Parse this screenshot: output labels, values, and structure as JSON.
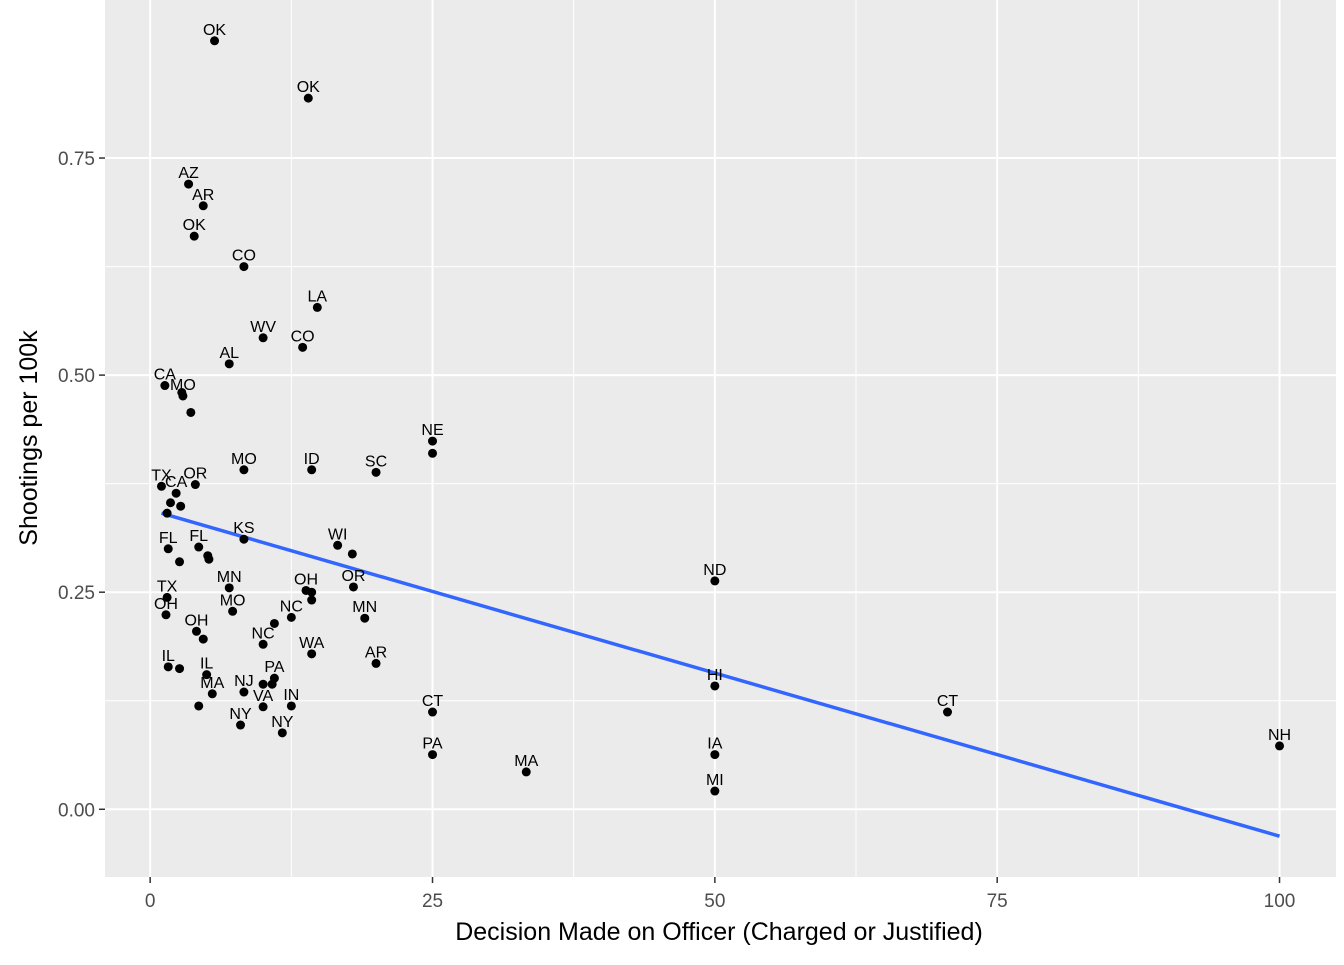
{
  "chart_data": {
    "type": "scatter",
    "title": "",
    "xlabel": "Decision Made on Officer (Charged or Justified)",
    "ylabel": "Shootings per 100k",
    "xlim": [
      -4,
      105
    ],
    "ylim": [
      -0.078,
      0.932
    ],
    "xticks": [
      0,
      25,
      50,
      75,
      100
    ],
    "xtick_labels": [
      "0",
      "25",
      "50",
      "75",
      "100"
    ],
    "yticks": [
      0.0,
      0.25,
      0.5,
      0.75
    ],
    "ytick_labels": [
      "0.00",
      "0.25",
      "0.50",
      "0.75"
    ],
    "grid": true,
    "background": "#ebebeb",
    "grid_color": "#ffffff",
    "point_color": "#000000",
    "trend_color": "#3366ff",
    "trend_line": {
      "x": [
        1,
        100
      ],
      "y": [
        0.341,
        -0.031
      ]
    },
    "points": [
      {
        "x": 5.7,
        "y": 0.885,
        "label": "OK"
      },
      {
        "x": 14,
        "y": 0.819,
        "label": "OK"
      },
      {
        "x": 3.4,
        "y": 0.72,
        "label": "AZ"
      },
      {
        "x": 4.7,
        "y": 0.695,
        "label": "AR"
      },
      {
        "x": 3.9,
        "y": 0.66,
        "label": "OK"
      },
      {
        "x": 8.3,
        "y": 0.625,
        "label": "CO"
      },
      {
        "x": 14.8,
        "y": 0.578,
        "label": "LA"
      },
      {
        "x": 10,
        "y": 0.543,
        "label": "WV"
      },
      {
        "x": 13.5,
        "y": 0.532,
        "label": "CO"
      },
      {
        "x": 7,
        "y": 0.513,
        "label": "AL"
      },
      {
        "x": 1.3,
        "y": 0.488,
        "label": "CA"
      },
      {
        "x": 2.8,
        "y": 0.48,
        "label": ""
      },
      {
        "x": 2.9,
        "y": 0.476,
        "label": "MO"
      },
      {
        "x": 3.6,
        "y": 0.457,
        "label": ""
      },
      {
        "x": 25,
        "y": 0.424,
        "label": "NE"
      },
      {
        "x": 25,
        "y": 0.41,
        "label": ""
      },
      {
        "x": 8.3,
        "y": 0.391,
        "label": "MO"
      },
      {
        "x": 14.3,
        "y": 0.391,
        "label": "ID"
      },
      {
        "x": 20,
        "y": 0.388,
        "label": "SC"
      },
      {
        "x": 1,
        "y": 0.372,
        "label": "TX"
      },
      {
        "x": 4,
        "y": 0.374,
        "label": "OR"
      },
      {
        "x": 2.3,
        "y": 0.364,
        "label": "CA"
      },
      {
        "x": 1.8,
        "y": 0.353,
        "label": ""
      },
      {
        "x": 2.7,
        "y": 0.349,
        "label": ""
      },
      {
        "x": 1.5,
        "y": 0.341,
        "label": ""
      },
      {
        "x": 8.3,
        "y": 0.311,
        "label": "KS"
      },
      {
        "x": 16.6,
        "y": 0.304,
        "label": "WI"
      },
      {
        "x": 1.6,
        "y": 0.3,
        "label": "FL"
      },
      {
        "x": 4.3,
        "y": 0.302,
        "label": "FL"
      },
      {
        "x": 17.9,
        "y": 0.294,
        "label": ""
      },
      {
        "x": 5.1,
        "y": 0.292,
        "label": ""
      },
      {
        "x": 5.2,
        "y": 0.288,
        "label": ""
      },
      {
        "x": 2.6,
        "y": 0.285,
        "label": ""
      },
      {
        "x": 50,
        "y": 0.263,
        "label": "ND"
      },
      {
        "x": 7,
        "y": 0.255,
        "label": "MN"
      },
      {
        "x": 18,
        "y": 0.256,
        "label": "OR"
      },
      {
        "x": 13.8,
        "y": 0.252,
        "label": "OH"
      },
      {
        "x": 14.3,
        "y": 0.25,
        "label": ""
      },
      {
        "x": 1.5,
        "y": 0.244,
        "label": "TX"
      },
      {
        "x": 14.3,
        "y": 0.241,
        "label": ""
      },
      {
        "x": 7.3,
        "y": 0.228,
        "label": "MO"
      },
      {
        "x": 1.4,
        "y": 0.224,
        "label": "OH"
      },
      {
        "x": 12.5,
        "y": 0.221,
        "label": "NC"
      },
      {
        "x": 19,
        "y": 0.22,
        "label": "MN"
      },
      {
        "x": 11,
        "y": 0.214,
        "label": ""
      },
      {
        "x": 4.1,
        "y": 0.205,
        "label": "OH"
      },
      {
        "x": 4.7,
        "y": 0.196,
        "label": ""
      },
      {
        "x": 10,
        "y": 0.19,
        "label": "NC"
      },
      {
        "x": 14.3,
        "y": 0.179,
        "label": "WA"
      },
      {
        "x": 20,
        "y": 0.168,
        "label": "AR"
      },
      {
        "x": 1.6,
        "y": 0.164,
        "label": "IL"
      },
      {
        "x": 2.6,
        "y": 0.162,
        "label": ""
      },
      {
        "x": 5,
        "y": 0.155,
        "label": "IL"
      },
      {
        "x": 11,
        "y": 0.151,
        "label": "PA"
      },
      {
        "x": 10.8,
        "y": 0.144,
        "label": ""
      },
      {
        "x": 10,
        "y": 0.144,
        "label": ""
      },
      {
        "x": 50,
        "y": 0.142,
        "label": "HI"
      },
      {
        "x": 8.3,
        "y": 0.135,
        "label": "NJ"
      },
      {
        "x": 5.5,
        "y": 0.133,
        "label": "MA"
      },
      {
        "x": 4.3,
        "y": 0.119,
        "label": ""
      },
      {
        "x": 10,
        "y": 0.118,
        "label": "VA"
      },
      {
        "x": 12.5,
        "y": 0.119,
        "label": "IN"
      },
      {
        "x": 25,
        "y": 0.112,
        "label": "CT"
      },
      {
        "x": 70.6,
        "y": 0.112,
        "label": "CT"
      },
      {
        "x": 8,
        "y": 0.097,
        "label": "NY"
      },
      {
        "x": 11.7,
        "y": 0.088,
        "label": "NY"
      },
      {
        "x": 100,
        "y": 0.073,
        "label": "NH"
      },
      {
        "x": 25,
        "y": 0.063,
        "label": "PA"
      },
      {
        "x": 50,
        "y": 0.063,
        "label": "IA"
      },
      {
        "x": 33.3,
        "y": 0.043,
        "label": "MA"
      },
      {
        "x": 50,
        "y": 0.021,
        "label": "MI"
      }
    ]
  }
}
